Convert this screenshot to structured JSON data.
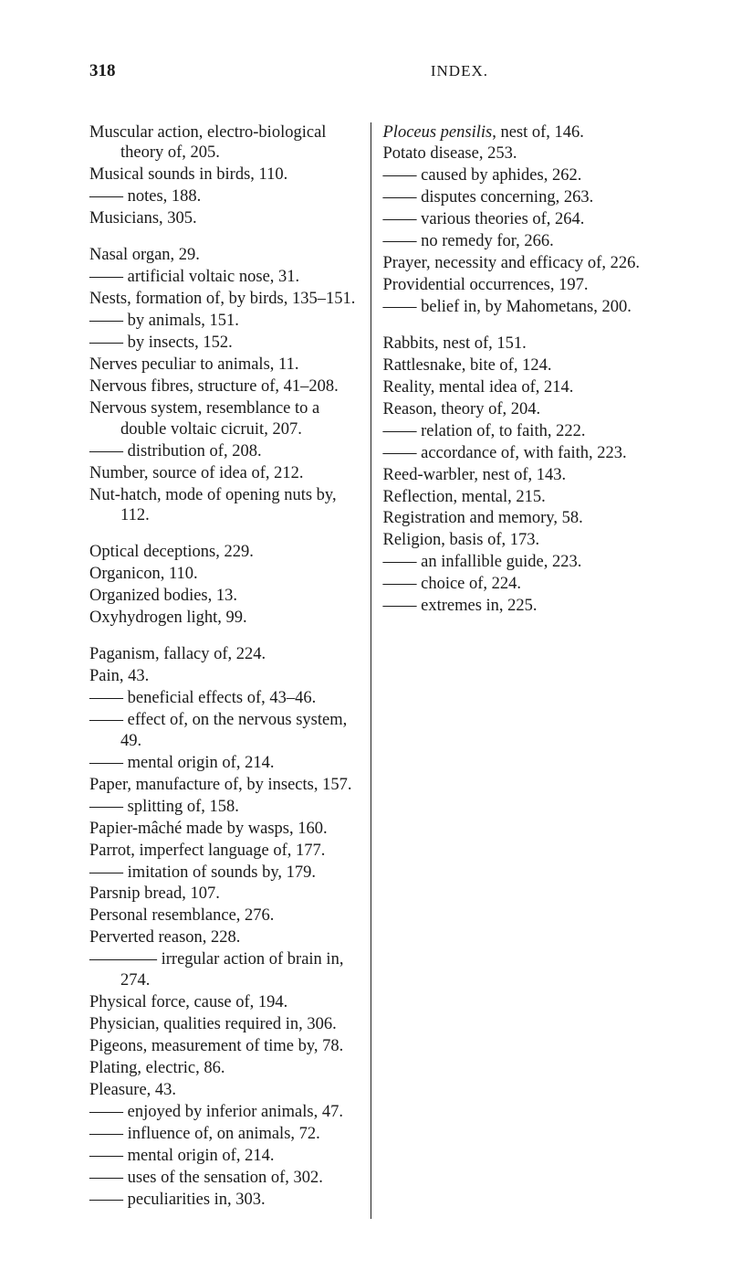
{
  "page_number": "318",
  "section_title": "INDEX.",
  "dash": "——",
  "long_dash": "————",
  "left_column": [
    {
      "text": "Muscular action, electro-biolo­gical theory of, 205."
    },
    {
      "text": "Musical sounds in birds, 110."
    },
    {
      "text": "—— notes, 188."
    },
    {
      "text": "Musicians, 305."
    },
    {
      "break": true
    },
    {
      "text": "Nasal organ, 29."
    },
    {
      "text": "—— artificial voltaic nose, 31."
    },
    {
      "text": "Nests, formation of, by birds, 135–151."
    },
    {
      "text": "—— by animals, 151."
    },
    {
      "text": "—— by insects, 152."
    },
    {
      "text": "Nerves peculiar to animals, 11."
    },
    {
      "text": "Nervous fibres, structure of, 41–208."
    },
    {
      "text": "Nervous system, resemblance to a double voltaic cicruit, 207."
    },
    {
      "text": "—— distribution of, 208."
    },
    {
      "text": "Number, source of idea of, 212."
    },
    {
      "text": "Nut-hatch, mode of opening nuts by, 112."
    },
    {
      "break": true
    },
    {
      "text": "Optical deceptions, 229."
    },
    {
      "text": "Organicon, 110."
    },
    {
      "text": "Organized bodies, 13."
    },
    {
      "text": "Oxyhydrogen light, 99."
    },
    {
      "break": true
    },
    {
      "text": "Paganism, fallacy of, 224."
    },
    {
      "text": "Pain, 43."
    },
    {
      "text": "—— beneficial effects of, 43–46."
    },
    {
      "text": "—— effect of, on the nervous system, 49."
    },
    {
      "text": "—— mental origin of, 214."
    },
    {
      "text": "Paper, manufacture of, by insects, 157."
    },
    {
      "text": "—— splitting of, 158."
    },
    {
      "text": "Papier-mâché made by wasps, 160."
    },
    {
      "text": "Parrot, imperfect language of, 177."
    },
    {
      "text": "—— imitation of sounds by, 179."
    },
    {
      "text": "Parsnip bread, 107."
    }
  ],
  "right_column": [
    {
      "text": "Personal resemblance, 276."
    },
    {
      "text": "Perverted reason, 228."
    },
    {
      "text": "———— irregular action of brain in, 274."
    },
    {
      "text": "Physical force, cause of, 194."
    },
    {
      "text": "Physician, qualities required in, 306."
    },
    {
      "text": "Pigeons, measurement of time by, 78."
    },
    {
      "text": "Plating, electric, 86."
    },
    {
      "text": "Pleasure, 43."
    },
    {
      "text": "—— enjoyed by inferior ani­mals, 47."
    },
    {
      "text": "—— influence of, on animals, 72."
    },
    {
      "text": "—— mental origin of, 214."
    },
    {
      "text": "—— uses of the sensation of, 302."
    },
    {
      "text": "—— peculiarities in, 303."
    },
    {
      "html": "<span class='italic'>Ploceus pensilis</span>, nest of, 146."
    },
    {
      "text": "Potato disease, 253."
    },
    {
      "text": "—— caused by aphides, 262."
    },
    {
      "text": "—— disputes concerning, 263."
    },
    {
      "text": "—— various theories of, 264."
    },
    {
      "text": "—— no remedy for, 266."
    },
    {
      "text": "Prayer, necessity and efficacy of, 226."
    },
    {
      "text": "Providential occurrences, 197."
    },
    {
      "text": "—— belief in, by Mahometans, 200."
    },
    {
      "break": true
    },
    {
      "text": "Rabbits, nest of, 151."
    },
    {
      "text": "Rattlesnake, bite of, 124."
    },
    {
      "text": "Reality, mental idea of, 214."
    },
    {
      "text": "Reason, theory of, 204."
    },
    {
      "text": "—— relation of, to faith, 222."
    },
    {
      "text": "—— accordance of, with faith, 223."
    },
    {
      "text": "Reed-warbler, nest of, 143."
    },
    {
      "text": "Reflection, mental, 215."
    },
    {
      "text": "Registration and memory, 58."
    },
    {
      "text": "Religion, basis of, 173."
    },
    {
      "text": "—— an infallible guide, 223."
    },
    {
      "text": "—— choice of, 224."
    },
    {
      "text": "—— extremes in, 225."
    }
  ]
}
